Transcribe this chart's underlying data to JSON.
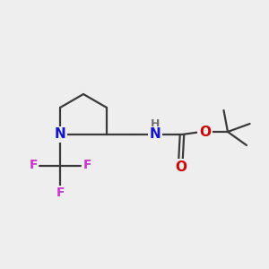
{
  "background_color": "#eeeeee",
  "bond_color": "#3a3a3a",
  "nitrogen_color": "#1414cc",
  "oxygen_color": "#cc0000",
  "fluorine_color": "#cc33cc",
  "hydrogen_color": "#707070",
  "figsize": [
    3.0,
    3.0
  ],
  "dpi": 100,
  "xlim": [
    0,
    10
  ],
  "ylim": [
    0,
    10
  ]
}
